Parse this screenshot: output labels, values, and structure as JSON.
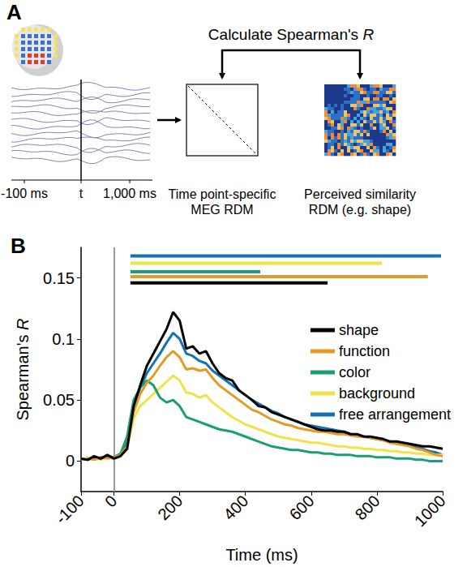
{
  "diagram": {
    "panel": "A",
    "eeg_axis": {
      "start": "-100 ms",
      "marker": "t",
      "end": "1,000 ms"
    },
    "comparison": "Calculate Spearman's R",
    "meg_rdm": "Time point-specific MEG RDM",
    "similarity_rdm": "Perceived similarity RDM (e.g. shape)"
  },
  "chart_data": {
    "type": "line",
    "panel": "B",
    "x_label": "Time (ms)",
    "y_label": "Spearman's R",
    "x": [
      -100,
      -80,
      -60,
      -40,
      -20,
      0,
      20,
      40,
      60,
      80,
      100,
      120,
      140,
      160,
      180,
      200,
      220,
      240,
      260,
      280,
      300,
      320,
      340,
      360,
      380,
      400,
      420,
      440,
      460,
      480,
      500,
      520,
      540,
      560,
      580,
      600,
      620,
      640,
      660,
      680,
      700,
      720,
      740,
      760,
      780,
      800,
      820,
      840,
      860,
      880,
      900,
      920,
      940,
      960,
      980,
      1000
    ],
    "xlim": [
      -100,
      1000
    ],
    "xticks": [
      -100,
      0,
      200,
      400,
      600,
      800,
      1000
    ],
    "ylim": [
      -0.025,
      0.175
    ],
    "yticks": [
      0,
      0.05,
      0.1,
      0.15
    ],
    "grid": false,
    "legend": "upper right",
    "onset": 0,
    "series": [
      {
        "name": "shape",
        "color": "#000000",
        "significance": {
          "start": 50,
          "end": 650,
          "y": 0.146
        },
        "values": [
          0.002,
          0.001,
          0.004,
          0.002,
          0.005,
          0.002,
          0.004,
          0.01,
          0.045,
          0.062,
          0.078,
          0.088,
          0.098,
          0.108,
          0.122,
          0.115,
          0.092,
          0.094,
          0.088,
          0.09,
          0.08,
          0.072,
          0.068,
          0.066,
          0.058,
          0.054,
          0.05,
          0.045,
          0.044,
          0.04,
          0.038,
          0.036,
          0.034,
          0.032,
          0.03,
          0.028,
          0.026,
          0.025,
          0.025,
          0.024,
          0.024,
          0.022,
          0.022,
          0.02,
          0.02,
          0.019,
          0.018,
          0.016,
          0.016,
          0.015,
          0.014,
          0.013,
          0.012,
          0.012,
          0.011,
          0.01
        ]
      },
      {
        "name": "function",
        "color": "#e39b26",
        "significance": {
          "start": 50,
          "end": 955,
          "y": 0.151
        },
        "values": [
          0.001,
          0.002,
          0.001,
          0.003,
          0.002,
          0.003,
          0.005,
          0.012,
          0.04,
          0.055,
          0.064,
          0.07,
          0.078,
          0.085,
          0.09,
          0.085,
          0.075,
          0.076,
          0.074,
          0.075,
          0.068,
          0.062,
          0.058,
          0.054,
          0.05,
          0.046,
          0.042,
          0.04,
          0.037,
          0.034,
          0.032,
          0.03,
          0.029,
          0.027,
          0.026,
          0.025,
          0.024,
          0.024,
          0.023,
          0.022,
          0.022,
          0.021,
          0.02,
          0.02,
          0.019,
          0.018,
          0.017,
          0.015,
          0.014,
          0.013,
          0.012,
          0.01,
          0.009,
          0.007,
          0.005,
          0.004
        ]
      },
      {
        "name": "color",
        "color": "#1a9e74",
        "significance": {
          "start": 50,
          "end": 445,
          "y": 0.155
        },
        "values": [
          0.002,
          0.001,
          0.003,
          0.002,
          0.004,
          0.003,
          0.006,
          0.02,
          0.05,
          0.06,
          0.066,
          0.062,
          0.052,
          0.048,
          0.05,
          0.045,
          0.036,
          0.034,
          0.032,
          0.03,
          0.028,
          0.026,
          0.025,
          0.024,
          0.022,
          0.02,
          0.018,
          0.016,
          0.014,
          0.012,
          0.011,
          0.01,
          0.009,
          0.009,
          0.008,
          0.007,
          0.007,
          0.006,
          0.006,
          0.005,
          0.005,
          0.005,
          0.004,
          0.004,
          0.004,
          0.003,
          0.003,
          0.003,
          0.002,
          0.002,
          0.002,
          0.001,
          0.001,
          0,
          0,
          0
        ]
      },
      {
        "name": "background",
        "color": "#eee44a",
        "significance": {
          "start": 50,
          "end": 815,
          "y": 0.162
        },
        "values": [
          0.001,
          0.003,
          0.002,
          0.001,
          0.003,
          0.002,
          0.004,
          0.01,
          0.035,
          0.045,
          0.05,
          0.055,
          0.06,
          0.065,
          0.07,
          0.066,
          0.056,
          0.055,
          0.052,
          0.054,
          0.048,
          0.044,
          0.04,
          0.036,
          0.033,
          0.03,
          0.028,
          0.026,
          0.024,
          0.022,
          0.02,
          0.019,
          0.018,
          0.017,
          0.016,
          0.015,
          0.015,
          0.014,
          0.013,
          0.012,
          0.012,
          0.011,
          0.011,
          0.01,
          0.01,
          0.009,
          0.009,
          0.008,
          0.008,
          0.007,
          0.007,
          0.006,
          0.006,
          0.005,
          0.005,
          0.005
        ]
      },
      {
        "name": "free arrangement",
        "color": "#1471b4",
        "significance": {
          "start": 50,
          "end": 995,
          "y": 0.168
        },
        "values": [
          0.001,
          0.002,
          0.002,
          0.003,
          0.004,
          0.003,
          0.006,
          0.015,
          0.045,
          0.06,
          0.072,
          0.08,
          0.088,
          0.097,
          0.105,
          0.1,
          0.088,
          0.086,
          0.082,
          0.08,
          0.074,
          0.07,
          0.066,
          0.062,
          0.058,
          0.054,
          0.05,
          0.047,
          0.044,
          0.041,
          0.039,
          0.036,
          0.034,
          0.032,
          0.03,
          0.029,
          0.028,
          0.027,
          0.026,
          0.025,
          0.024,
          0.022,
          0.021,
          0.02,
          0.019,
          0.018,
          0.017,
          0.016,
          0.015,
          0.014,
          0.013,
          0.011,
          0.01,
          0.008,
          0.007,
          0.005
        ]
      }
    ]
  }
}
